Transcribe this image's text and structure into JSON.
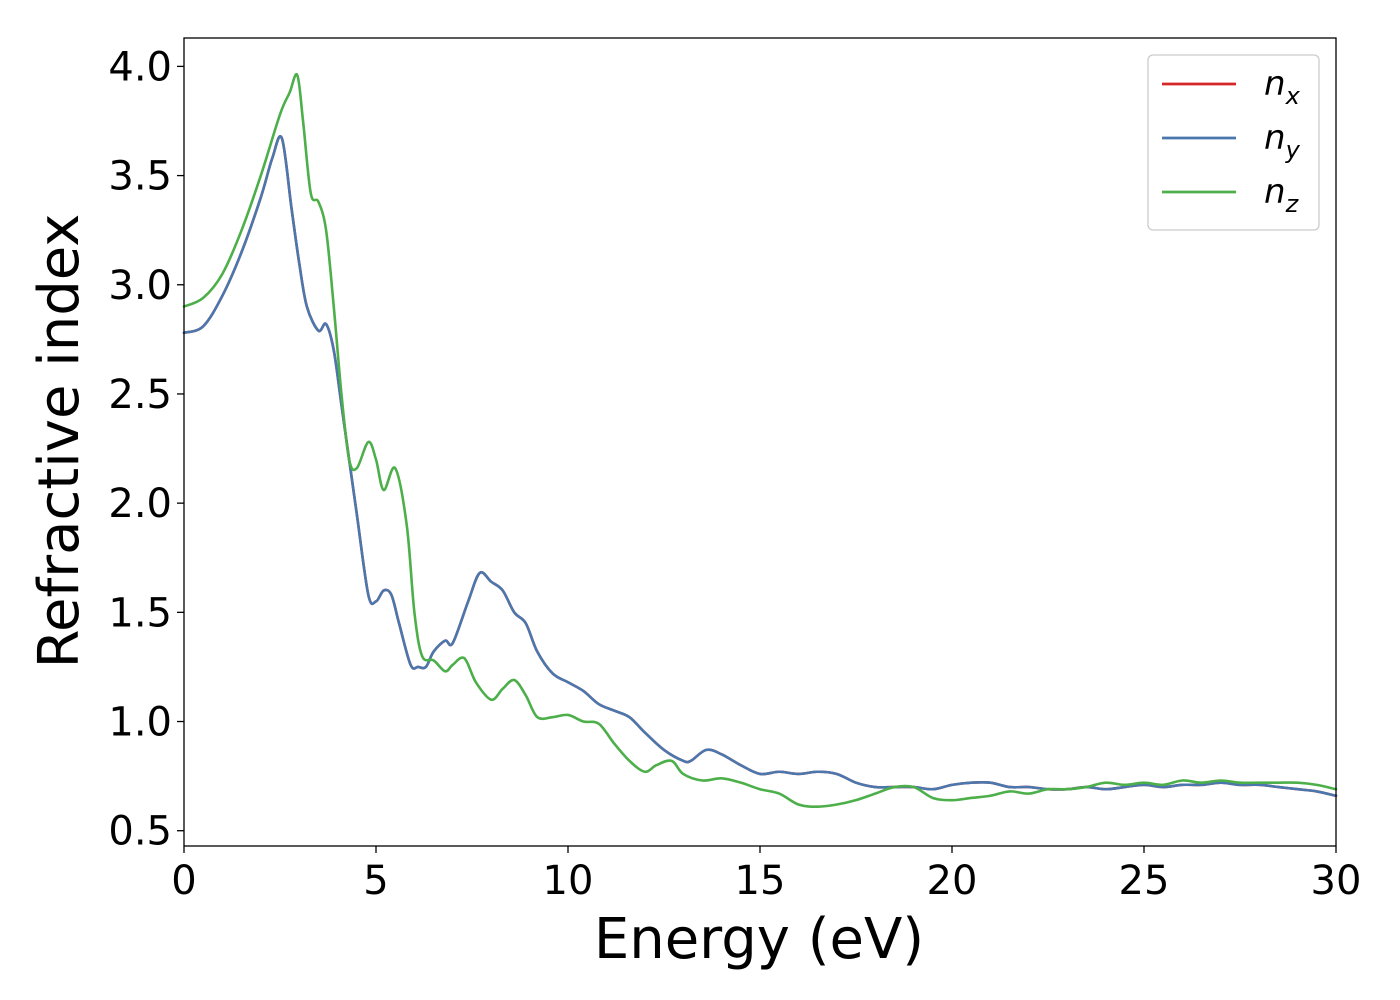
{
  "chart_data": {
    "type": "line",
    "title": "",
    "xlabel": "Energy (eV)",
    "ylabel": "Refractive index",
    "xlim": [
      0,
      30
    ],
    "ylim": [
      0.43,
      4.13
    ],
    "xticks": [
      0,
      5,
      10,
      15,
      20,
      25,
      30
    ],
    "xtick_labels": [
      "0",
      "5",
      "10",
      "15",
      "20",
      "25",
      "30"
    ],
    "yticks": [
      0.5,
      1.0,
      1.5,
      2.0,
      2.5,
      3.0,
      3.5,
      4.0
    ],
    "ytick_labels": [
      "0.5",
      "1.0",
      "1.5",
      "2.0",
      "2.5",
      "3.0",
      "3.5",
      "4.0"
    ],
    "grid": false,
    "legend_position": "top-right",
    "legend": [
      {
        "base": "n",
        "sub": "x"
      },
      {
        "base": "n",
        "sub": "y"
      },
      {
        "base": "n",
        "sub": "z"
      }
    ],
    "series": [
      {
        "id": "nx",
        "color": "#d62728",
        "x": [
          0,
          0.5,
          1,
          1.5,
          2,
          2.3,
          2.55,
          2.8,
          3.0,
          3.2,
          3.5,
          3.7,
          3.9,
          4.1,
          4.3,
          4.5,
          4.8,
          5.0,
          5.2,
          5.4,
          5.6,
          5.9,
          6.1,
          6.3,
          6.5,
          6.8,
          7.0,
          7.4,
          7.7,
          8.0,
          8.3,
          8.6,
          8.9,
          9.2,
          9.6,
          10.0,
          10.4,
          10.8,
          11.2,
          11.6,
          12.0,
          12.5,
          13.0,
          13.2,
          13.6,
          14.0,
          14.5,
          15.0,
          15.5,
          16.0,
          16.5,
          17.0,
          17.5,
          18.0,
          18.5,
          19.0,
          19.5,
          20.0,
          20.5,
          21.0,
          21.5,
          22.0,
          22.5,
          23.0,
          23.5,
          24.0,
          24.5,
          25.0,
          25.5,
          26.0,
          26.5,
          27.0,
          27.5,
          28.0,
          28.5,
          29.0,
          29.5,
          30.0
        ],
        "y": [
          2.78,
          2.81,
          2.95,
          3.15,
          3.4,
          3.58,
          3.67,
          3.35,
          3.1,
          2.9,
          2.79,
          2.82,
          2.7,
          2.45,
          2.2,
          1.95,
          1.58,
          1.55,
          1.6,
          1.58,
          1.45,
          1.26,
          1.25,
          1.25,
          1.32,
          1.37,
          1.36,
          1.55,
          1.68,
          1.64,
          1.6,
          1.5,
          1.45,
          1.32,
          1.22,
          1.18,
          1.14,
          1.08,
          1.05,
          1.02,
          0.95,
          0.87,
          0.82,
          0.82,
          0.87,
          0.85,
          0.8,
          0.76,
          0.77,
          0.76,
          0.77,
          0.76,
          0.72,
          0.7,
          0.7,
          0.7,
          0.69,
          0.71,
          0.72,
          0.72,
          0.7,
          0.7,
          0.69,
          0.69,
          0.7,
          0.69,
          0.7,
          0.71,
          0.7,
          0.71,
          0.71,
          0.72,
          0.71,
          0.71,
          0.7,
          0.69,
          0.68,
          0.66
        ]
      },
      {
        "id": "ny",
        "color": "#4a78ae",
        "x": [
          0,
          0.5,
          1,
          1.5,
          2,
          2.3,
          2.55,
          2.8,
          3.0,
          3.2,
          3.5,
          3.7,
          3.9,
          4.1,
          4.3,
          4.5,
          4.8,
          5.0,
          5.2,
          5.4,
          5.6,
          5.9,
          6.1,
          6.3,
          6.5,
          6.8,
          7.0,
          7.4,
          7.7,
          8.0,
          8.3,
          8.6,
          8.9,
          9.2,
          9.6,
          10.0,
          10.4,
          10.8,
          11.2,
          11.6,
          12.0,
          12.5,
          13.0,
          13.2,
          13.6,
          14.0,
          14.5,
          15.0,
          15.5,
          16.0,
          16.5,
          17.0,
          17.5,
          18.0,
          18.5,
          19.0,
          19.5,
          20.0,
          20.5,
          21.0,
          21.5,
          22.0,
          22.5,
          23.0,
          23.5,
          24.0,
          24.5,
          25.0,
          25.5,
          26.0,
          26.5,
          27.0,
          27.5,
          28.0,
          28.5,
          29.0,
          29.5,
          30.0
        ],
        "y": [
          2.78,
          2.81,
          2.95,
          3.15,
          3.4,
          3.58,
          3.67,
          3.35,
          3.1,
          2.9,
          2.79,
          2.82,
          2.7,
          2.45,
          2.2,
          1.95,
          1.58,
          1.55,
          1.6,
          1.58,
          1.45,
          1.26,
          1.25,
          1.25,
          1.32,
          1.37,
          1.36,
          1.55,
          1.68,
          1.64,
          1.6,
          1.5,
          1.45,
          1.32,
          1.22,
          1.18,
          1.14,
          1.08,
          1.05,
          1.02,
          0.95,
          0.87,
          0.82,
          0.82,
          0.87,
          0.85,
          0.8,
          0.76,
          0.77,
          0.76,
          0.77,
          0.76,
          0.72,
          0.7,
          0.7,
          0.7,
          0.69,
          0.71,
          0.72,
          0.72,
          0.7,
          0.7,
          0.69,
          0.69,
          0.7,
          0.69,
          0.7,
          0.71,
          0.7,
          0.71,
          0.71,
          0.72,
          0.71,
          0.71,
          0.7,
          0.69,
          0.68,
          0.66
        ]
      },
      {
        "id": "nz",
        "color": "#4daf4a",
        "x": [
          0,
          0.5,
          1,
          1.5,
          2,
          2.5,
          2.75,
          2.95,
          3.1,
          3.3,
          3.5,
          3.7,
          3.9,
          4.1,
          4.3,
          4.5,
          4.8,
          5.0,
          5.2,
          5.5,
          5.8,
          6.0,
          6.2,
          6.5,
          6.8,
          7.0,
          7.3,
          7.6,
          8.0,
          8.3,
          8.6,
          8.9,
          9.2,
          9.6,
          10.0,
          10.4,
          10.8,
          11.2,
          11.6,
          12.0,
          12.3,
          12.7,
          13.0,
          13.5,
          14.0,
          14.5,
          15.0,
          15.5,
          16.0,
          16.5,
          17.0,
          17.5,
          18.0,
          18.5,
          19.0,
          19.5,
          20.0,
          20.5,
          21.0,
          21.5,
          22.0,
          22.5,
          23.0,
          23.5,
          24.0,
          24.5,
          25.0,
          25.5,
          26.0,
          26.5,
          27.0,
          27.5,
          28.0,
          28.5,
          29.0,
          29.5,
          30.0
        ],
        "y": [
          2.9,
          2.94,
          3.05,
          3.25,
          3.5,
          3.78,
          3.88,
          3.96,
          3.75,
          3.42,
          3.38,
          3.25,
          2.9,
          2.5,
          2.2,
          2.16,
          2.28,
          2.2,
          2.06,
          2.16,
          1.9,
          1.5,
          1.3,
          1.28,
          1.23,
          1.26,
          1.29,
          1.18,
          1.1,
          1.15,
          1.19,
          1.12,
          1.02,
          1.02,
          1.03,
          1.0,
          0.99,
          0.9,
          0.82,
          0.77,
          0.8,
          0.82,
          0.76,
          0.73,
          0.74,
          0.72,
          0.69,
          0.67,
          0.62,
          0.61,
          0.62,
          0.64,
          0.67,
          0.7,
          0.7,
          0.65,
          0.64,
          0.65,
          0.66,
          0.68,
          0.67,
          0.69,
          0.69,
          0.7,
          0.72,
          0.71,
          0.72,
          0.71,
          0.73,
          0.72,
          0.73,
          0.72,
          0.72,
          0.72,
          0.72,
          0.71,
          0.69
        ]
      }
    ]
  }
}
